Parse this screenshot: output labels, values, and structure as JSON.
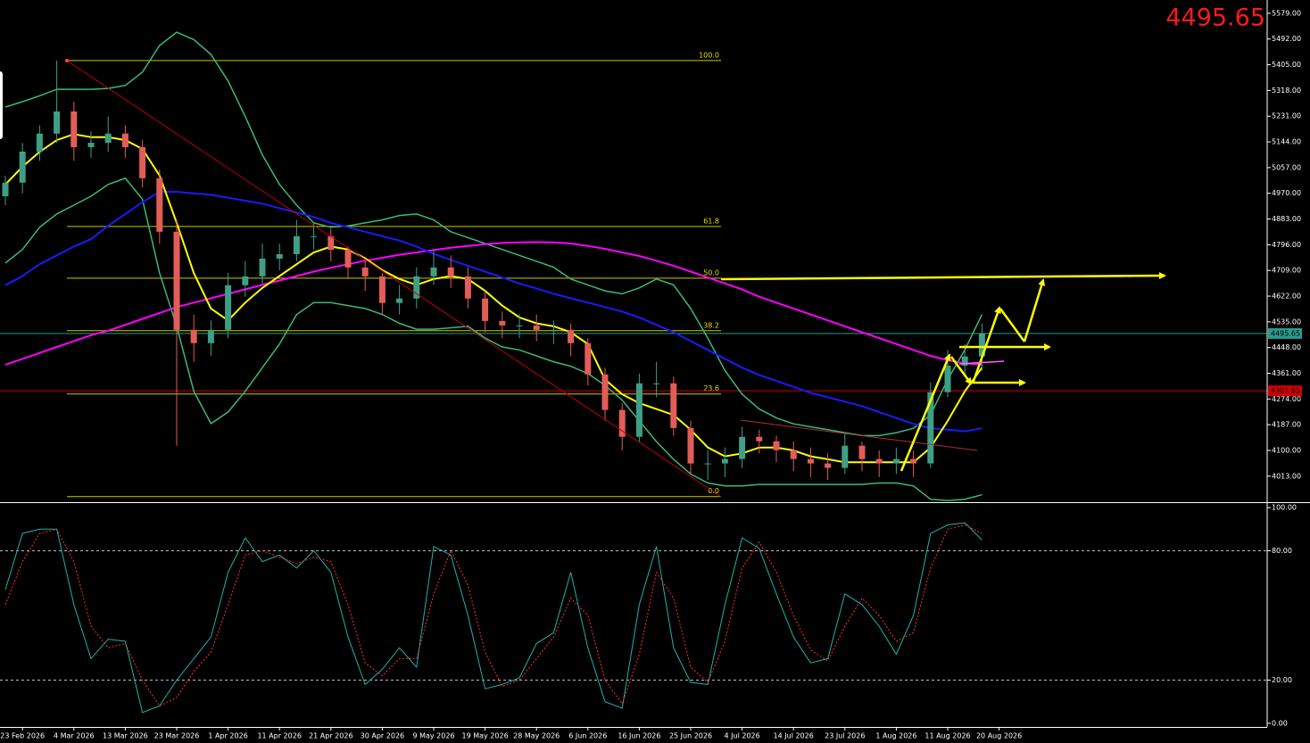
{
  "chart_data": [
    {
      "type": "candlestick",
      "categories": [
        null,
        "23 Feb 2026",
        null,
        null,
        "4 Mar 2026",
        null,
        null,
        "13 Mar 2026",
        null,
        null,
        "23 Mar 2026",
        null,
        null,
        "1 Apr 2026",
        null,
        null,
        "11 Apr 2026",
        null,
        null,
        "21 Apr 2026",
        null,
        null,
        "30 Apr 2026",
        null,
        null,
        "9 May 2026",
        null,
        null,
        "19 May 2026",
        null,
        null,
        "28 May 2026",
        null,
        null,
        "6 Jun 2026",
        null,
        null,
        "16 Jun 2026",
        null,
        null,
        "25 Jun 2026",
        null,
        null,
        "4 Jul 2026",
        null,
        null,
        "14 Jul 2026",
        null,
        null,
        "23 Jul 2026",
        null,
        null,
        "1 Aug 2026",
        null,
        null,
        "11 Aug 2026",
        null,
        null,
        "20 Aug 2026"
      ],
      "open": [
        4960,
        5006,
        5111,
        5172,
        5247,
        5126,
        5141,
        5172,
        5126,
        5021,
        4840,
        4508,
        4463,
        4508,
        4659,
        4689,
        4749,
        4764,
        4825,
        4825,
        4779,
        4719,
        4689,
        4599,
        4614,
        4689,
        4719,
        4689,
        4614,
        4538,
        4523,
        4523,
        4508,
        4508,
        4463,
        4357,
        4237,
        4146,
        4327,
        4327,
        4176,
        4056,
        4056,
        4071,
        4146,
        4131,
        4101,
        4071,
        4056,
        4041,
        4116,
        4071,
        4056,
        4071,
        4056,
        4297,
        4387,
        4418,
        null
      ],
      "high": [
        5030,
        5140,
        5200,
        5419,
        5280,
        5180,
        5230,
        5200,
        5150,
        5050,
        4880,
        4560,
        4540,
        4700,
        4740,
        4800,
        4800,
        4880,
        4870,
        4850,
        4790,
        4740,
        4700,
        4660,
        4720,
        4780,
        4760,
        4720,
        4640,
        4570,
        4560,
        4560,
        4540,
        4530,
        4480,
        4380,
        4260,
        4360,
        4400,
        4350,
        4200,
        4100,
        4110,
        4180,
        4170,
        4150,
        4130,
        4110,
        4090,
        4160,
        4130,
        4100,
        4110,
        4100,
        4330,
        4440,
        4460,
        4530,
        null
      ],
      "low": [
        4930,
        4970,
        5080,
        5140,
        5080,
        5090,
        5110,
        5090,
        4990,
        4800,
        4116,
        4400,
        4420,
        4480,
        4620,
        4660,
        4710,
        4740,
        4780,
        4740,
        4680,
        4640,
        4560,
        4560,
        4580,
        4660,
        4650,
        4580,
        4500,
        4480,
        4480,
        4470,
        4460,
        4420,
        4320,
        4200,
        4100,
        4130,
        4280,
        4150,
        4020,
        4000,
        4010,
        4040,
        4090,
        4060,
        4030,
        4010,
        4000,
        4020,
        4030,
        4010,
        4020,
        4010,
        4040,
        4280,
        4360,
        4370,
        null
      ],
      "close": [
        5006,
        5111,
        5172,
        5247,
        5126,
        5141,
        5172,
        5126,
        5021,
        4840,
        4508,
        4463,
        4508,
        4659,
        4689,
        4749,
        4764,
        4825,
        4825,
        4779,
        4719,
        4689,
        4599,
        4614,
        4689,
        4719,
        4689,
        4614,
        4538,
        4523,
        4523,
        4508,
        4508,
        4463,
        4357,
        4237,
        4146,
        4327,
        4327,
        4176,
        4056,
        4056,
        4071,
        4146,
        4131,
        4101,
        4071,
        4056,
        4041,
        4116,
        4071,
        4056,
        4071,
        4056,
        4297,
        4387,
        4418,
        4496,
        null
      ],
      "up_color": "#3f9f86",
      "down_color": "#e35d57",
      "lines": [
        {
          "color": "#3cb878",
          "width": 1.5,
          "values": [
            5262,
            5280,
            5300,
            5322,
            5322,
            5322,
            5325,
            5335,
            5380,
            5470,
            5515,
            5490,
            5440,
            5350,
            5230,
            5100,
            5000,
            4930,
            4870,
            4855,
            4860,
            4870,
            4880,
            4895,
            4900,
            4880,
            4840,
            4820,
            4800,
            4780,
            4760,
            4740,
            4720,
            4680,
            4660,
            4640,
            4630,
            4650,
            4680,
            4660,
            4580,
            4480,
            4370,
            4290,
            4240,
            4210,
            4190,
            4180,
            4170,
            4160,
            4150,
            4150,
            4160,
            4175,
            4220,
            4340,
            4440,
            4560,
            null
          ]
        },
        {
          "color": "#3cb878",
          "width": 1.5,
          "values": [
            4734,
            4780,
            4855,
            4900,
            4930,
            4960,
            5000,
            5021,
            4950,
            4700,
            4520,
            4300,
            4191,
            4230,
            4300,
            4380,
            4460,
            4560,
            4600,
            4600,
            4590,
            4580,
            4560,
            4530,
            4510,
            4510,
            4515,
            4520,
            4480,
            4450,
            4440,
            4420,
            4400,
            4385,
            4360,
            4320,
            4270,
            4200,
            4130,
            4070,
            4020,
            3990,
            3980,
            3980,
            3985,
            3985,
            3985,
            3985,
            3985,
            3985,
            3985,
            3990,
            3990,
            3980,
            3935,
            3930,
            3935,
            3950,
            null
          ]
        },
        {
          "color": "#ff00ff",
          "width": 2,
          "values": [
            4390,
            4410,
            4430,
            4450,
            4470,
            4490,
            4505,
            4525,
            4545,
            4565,
            4585,
            4600,
            4615,
            4630,
            4645,
            4660,
            4675,
            4690,
            4705,
            4718,
            4730,
            4742,
            4752,
            4762,
            4770,
            4778,
            4786,
            4792,
            4798,
            4802,
            4804,
            4805,
            4804,
            4800,
            4792,
            4782,
            4770,
            4758,
            4742,
            4725,
            4705,
            4685,
            4665,
            4645,
            4620,
            4600,
            4580,
            4560,
            4540,
            4520,
            4500,
            4480,
            4460,
            4440,
            4420,
            4405,
            4395,
            4390,
            null
          ]
        },
        {
          "color": "#1a1aff",
          "width": 2,
          "values": [
            4659,
            4690,
            4730,
            4760,
            4790,
            4815,
            4860,
            4900,
            4940,
            4975,
            4975,
            4970,
            4965,
            4955,
            4945,
            4935,
            4920,
            4905,
            4890,
            4870,
            4855,
            4840,
            4825,
            4810,
            4790,
            4765,
            4745,
            4725,
            4705,
            4685,
            4665,
            4648,
            4630,
            4615,
            4600,
            4585,
            4570,
            4550,
            4525,
            4500,
            4470,
            4440,
            4410,
            4380,
            4355,
            4335,
            4315,
            4295,
            4280,
            4265,
            4250,
            4230,
            4210,
            4190,
            4175,
            4170,
            4165,
            4175,
            null
          ]
        },
        {
          "color": "#ffff00",
          "width": 2,
          "values": [
            5000,
            5060,
            5110,
            5150,
            5170,
            5160,
            5160,
            5150,
            5120,
            5030,
            4870,
            4700,
            4580,
            4540,
            4600,
            4650,
            4690,
            4730,
            4770,
            4790,
            4780,
            4750,
            4710,
            4680,
            4660,
            4680,
            4690,
            4680,
            4640,
            4590,
            4550,
            4530,
            4520,
            4500,
            4460,
            4340,
            4290,
            4260,
            4240,
            4220,
            4170,
            4110,
            4080,
            4090,
            4110,
            4110,
            4100,
            4080,
            4070,
            4060,
            4060,
            4060,
            4060,
            4060,
            4110,
            4200,
            4300,
            4380,
            null
          ]
        }
      ],
      "fib_levels": [
        "100.0",
        "61.8",
        "50.0",
        "38.2",
        "23.6",
        "0.0"
      ],
      "fib_prices": [
        5419,
        4858,
        4683,
        4505,
        4291,
        3944
      ],
      "fib_color": "#c8c800",
      "last_price": 4495.65,
      "last_price_color": "#2a9a8c",
      "marker_price": 4301.65,
      "marker_color": "#d00000",
      "ylim": [
        3928,
        5624
      ],
      "yticks": [
        {
          "value": 5579,
          "label": "5579.00"
        },
        {
          "value": 5492,
          "label": "5492.00"
        },
        {
          "value": 5405,
          "label": "5405.00"
        },
        {
          "value": 5318,
          "label": "5318.00"
        },
        {
          "value": 5231,
          "label": "5231.00"
        },
        {
          "value": 5144,
          "label": "5144.00"
        },
        {
          "value": 5057,
          "label": "5057.00"
        },
        {
          "value": 4970,
          "label": "4970.00"
        },
        {
          "value": 4883,
          "label": "4883.00"
        },
        {
          "value": 4796,
          "label": "4796.00"
        },
        {
          "value": 4709,
          "label": "4709.00"
        },
        {
          "value": 4622,
          "label": "4622.00"
        },
        {
          "value": 4535,
          "label": "4535.00"
        },
        {
          "value": 4448,
          "label": "4448.00"
        },
        {
          "value": 4361,
          "label": "4361.00"
        },
        {
          "value": 4274,
          "label": "4274.00"
        },
        {
          "value": 4187,
          "label": "4187.00"
        },
        {
          "value": 4100,
          "label": "4100.00"
        },
        {
          "value": 4013,
          "label": "4013.00"
        }
      ]
    },
    {
      "type": "line",
      "lines": [
        {
          "color": "#20b2aa",
          "width": 1,
          "values": [
            62,
            88,
            90,
            90,
            55,
            30,
            39,
            38,
            5,
            8,
            20,
            30,
            40,
            70,
            86,
            75,
            78,
            72,
            80,
            70,
            40,
            18,
            25,
            35,
            26,
            82,
            78,
            50,
            16,
            18,
            21,
            37,
            42,
            70,
            35,
            10,
            7,
            55,
            82,
            35,
            19,
            18,
            55,
            86,
            81,
            60,
            40,
            28,
            30,
            60,
            55,
            45,
            32,
            50,
            88,
            92,
            93,
            85,
            null
          ]
        },
        {
          "color": "#ff3030",
          "width": 1,
          "dash": true,
          "values": [
            55,
            75,
            88,
            90,
            75,
            45,
            35,
            37,
            20,
            8,
            12,
            24,
            33,
            55,
            78,
            80,
            77,
            74,
            77,
            75,
            55,
            28,
            22,
            30,
            30,
            60,
            80,
            64,
            33,
            17,
            20,
            30,
            40,
            58,
            50,
            20,
            9,
            32,
            70,
            58,
            26,
            19,
            38,
            72,
            84,
            70,
            50,
            34,
            29,
            45,
            58,
            50,
            38,
            42,
            72,
            90,
            92,
            88,
            null
          ]
        }
      ],
      "levels": [
        80,
        20
      ],
      "ylim": [
        -1.7,
        101.7
      ],
      "yticks": [
        {
          "value": 100,
          "label": "100.00"
        },
        {
          "value": 80,
          "label": "80.00"
        },
        {
          "value": 20,
          "label": "20.00"
        },
        {
          "value": 0,
          "label": "0.00"
        }
      ]
    }
  ]
}
